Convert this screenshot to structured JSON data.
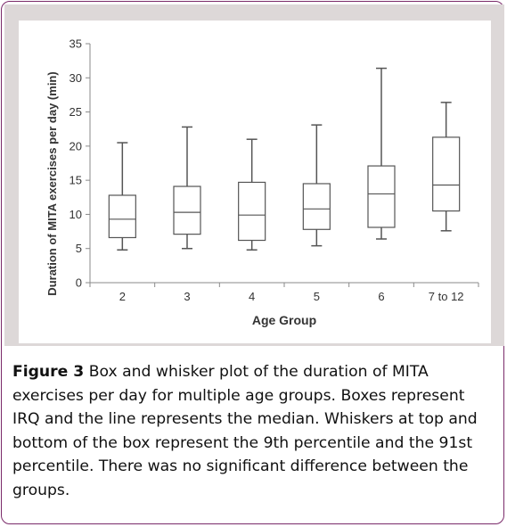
{
  "chart_data": {
    "type": "box",
    "title": "",
    "xlabel": "Age Group",
    "ylabel": "Duration of MITA exercises per day  (min)",
    "ylim": [
      0,
      35
    ],
    "yticks": [
      0,
      5,
      10,
      15,
      20,
      25,
      30,
      35
    ],
    "grid": false,
    "categories": [
      "2",
      "3",
      "4",
      "5",
      "6",
      "7 to 12"
    ],
    "series": [
      {
        "whisker_low": [
          4.8,
          5.0,
          4.8,
          5.4,
          6.4,
          7.6
        ],
        "q1": [
          6.6,
          7.1,
          6.2,
          7.8,
          8.1,
          10.5
        ],
        "median": [
          9.3,
          10.3,
          9.9,
          10.8,
          13.0,
          14.3
        ],
        "q3": [
          12.8,
          14.1,
          14.7,
          14.5,
          17.1,
          21.3
        ],
        "whisker_high": [
          20.5,
          22.8,
          21.0,
          23.1,
          31.4,
          26.4
        ]
      }
    ]
  },
  "caption": {
    "label": "Figure 3",
    "text": " Box and whisker plot of the duration of MITA exercises per day for multiple age groups. Boxes represent IRQ and the line represents the median. Whiskers at top and bottom of the box represent the 9th percentile and the 91st percentile. There was no significant difference between the groups."
  },
  "colors": {
    "border": "#7a2a6a",
    "panel": "#ddd8d8",
    "stroke": "#555555",
    "text": "#333333"
  }
}
